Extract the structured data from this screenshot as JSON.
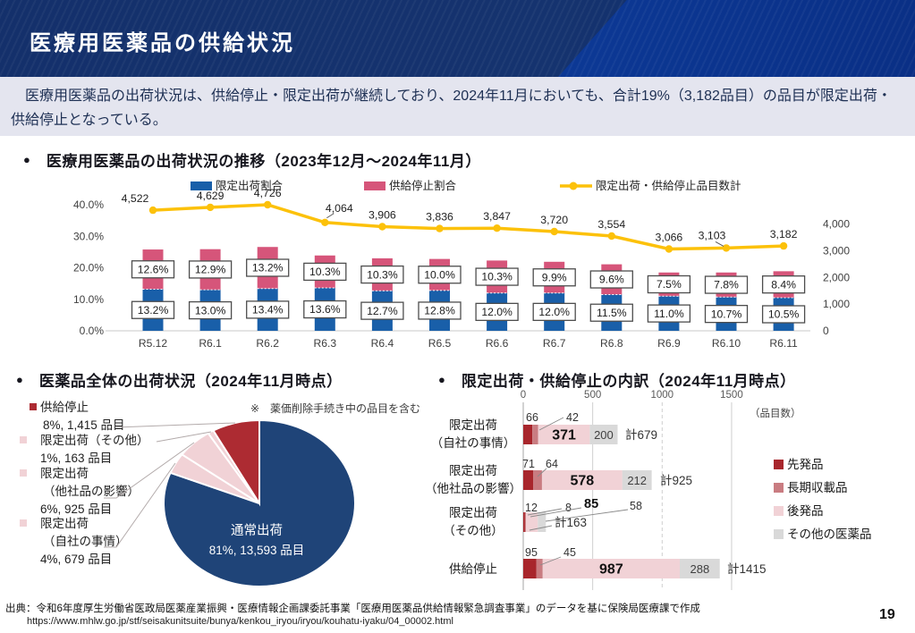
{
  "header": {
    "title": "医療用医薬品の供給状況"
  },
  "intro": {
    "text": "　医療用医薬品の出荷状況は、供給停止・限定出荷が継続しており、2024年11月においても、合計19%（3,182品目）の品目が限定出荷・供給停止となっている。"
  },
  "ui": {
    "bullet": "●"
  },
  "chart_data": [
    {
      "type": "bar",
      "subtype": "stacked-bars-with-line",
      "title": "医療用医薬品の出荷状況の推移（2023年12月～2024年11月）",
      "categories": [
        "R5.12",
        "R6.1",
        "R6.2",
        "R6.3",
        "R6.4",
        "R6.5",
        "R6.6",
        "R6.7",
        "R6.8",
        "R6.9",
        "R6.10",
        "R6.11"
      ],
      "series": [
        {
          "name": "限定出荷割合",
          "type": "bar",
          "color": "#195fa9",
          "unit": "%",
          "values": [
            13.2,
            13.0,
            13.4,
            13.6,
            12.7,
            12.8,
            12.0,
            12.0,
            11.5,
            11.0,
            10.7,
            10.5
          ]
        },
        {
          "name": "供給停止割合",
          "type": "bar",
          "color": "#d6557a",
          "unit": "%",
          "values": [
            12.6,
            12.9,
            13.2,
            10.3,
            10.3,
            10.0,
            10.3,
            9.9,
            9.6,
            7.5,
            7.8,
            8.4
          ]
        },
        {
          "name": "限定出荷・供給停止品目数計",
          "type": "line",
          "color": "#fcc10a",
          "axis": "right",
          "values": [
            4522,
            4629,
            4726,
            4064,
            3906,
            3836,
            3847,
            3720,
            3554,
            3066,
            3103,
            3182
          ]
        }
      ],
      "left_axis": {
        "min": 0,
        "max": 40,
        "ticks": [
          "0.0%",
          "10.0%",
          "20.0%",
          "30.0%",
          "40.0%"
        ]
      },
      "right_axis": {
        "min": 0,
        "tick_values": [
          0,
          1000,
          2000,
          3000,
          4000
        ],
        "ticks": [
          "0",
          "1,000",
          "2,000",
          "3,000",
          "4,000"
        ]
      },
      "grid": false,
      "legend_position": "top"
    },
    {
      "type": "pie",
      "title": "医薬品全体の出荷状況（2024年11月時点）",
      "note": "※　薬価削除手続き中の品目を含む",
      "slices": [
        {
          "label": "通常出荷",
          "percent": 81,
          "count": "13,593",
          "color": "#1f4478",
          "inner_label": [
            "通常出荷",
            "81%, 13,593 品目"
          ]
        },
        {
          "label": "限定出荷（自社の事情）",
          "percent": 4,
          "count": "679",
          "color": "#f1d2d6"
        },
        {
          "label": "限定出荷（他社品の影響）",
          "percent": 6,
          "count": "925",
          "color": "#f1d2d6"
        },
        {
          "label": "限定出荷（その他）",
          "percent": 1,
          "count": "163",
          "color": "#f1d2d6"
        },
        {
          "label": "供給停止",
          "percent": 8,
          "count": "1,415",
          "color": "#ad2b32"
        }
      ],
      "legend": [
        {
          "color": "#ad2b32",
          "lines": [
            "供給停止",
            "8%, 1,415 品目"
          ]
        },
        {
          "color": "#f1d2d6",
          "lines": [
            "限定出荷（その他）",
            "1%, 163 品目"
          ]
        },
        {
          "color": "#f1d2d6",
          "lines": [
            "限定出荷",
            "（他社品の影響）",
            "6%, 925 品目"
          ]
        },
        {
          "color": "#f1d2d6",
          "lines": [
            "限定出荷",
            "（自社の事情）",
            "4%, 679 品目"
          ]
        }
      ],
      "legend_position": "left"
    },
    {
      "type": "bar",
      "orientation": "horizontal",
      "subtype": "stacked",
      "title": "限定出荷・供給停止の内訳（2024年11月時点）",
      "unit_label": "（品目数）",
      "categories": [
        [
          "限定出荷",
          "（自社の事情）"
        ],
        [
          "限定出荷",
          "（他社品の影響）"
        ],
        [
          "限定出荷",
          "（その他）"
        ],
        [
          "供給停止"
        ]
      ],
      "series": [
        {
          "name": "先発品",
          "color": "#a8262c",
          "values": [
            66,
            71,
            12,
            95
          ]
        },
        {
          "name": "長期収載品",
          "color": "#c97c81",
          "values": [
            42,
            64,
            8,
            45
          ]
        },
        {
          "name": "後発品",
          "color": "#f1d2d6",
          "values": [
            371,
            578,
            85,
            987
          ]
        },
        {
          "name": "その他の医薬品",
          "color": "#d9d9d9",
          "values": [
            200,
            212,
            58,
            288
          ]
        }
      ],
      "totals": [
        "計679",
        "計925",
        "計163",
        "計1415"
      ],
      "x_axis": {
        "min": 0,
        "max": 1500,
        "ticks": [
          "0",
          "500",
          "1000",
          "1500"
        ],
        "tick_values": [
          0,
          500,
          1000,
          1500
        ]
      },
      "legend_position": "right"
    }
  ],
  "footer": {
    "source": "出典：令和6年度厚生労働省医政局医薬産業振興・医療情報企画課委託事業「医療用医薬品供給情報緊急調査事業」のデータを基に保険局医療課で作成",
    "url": "https://www.mhlw.go.jp/stf/seisakunitsuite/bunya/kenkou_iryou/iryou/kouhatu-iyaku/04_00002.html",
    "page": "19"
  }
}
